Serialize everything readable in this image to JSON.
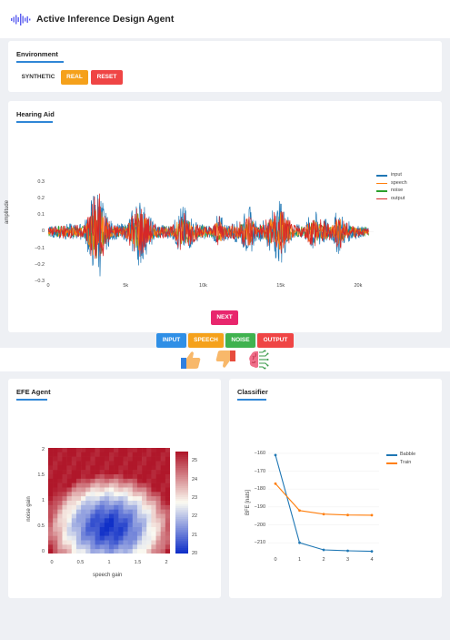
{
  "app": {
    "title": "Active Inference Design Agent"
  },
  "environment": {
    "title": "Environment",
    "buttons": [
      {
        "label": "SYNTHETIC",
        "color": "transparent"
      },
      {
        "label": "REAL",
        "color": "#f5a11b"
      },
      {
        "label": "RESET",
        "color": "#ef4545"
      }
    ]
  },
  "hearing_aid": {
    "title": "Hearing Aid",
    "next_label": "NEXT",
    "signal_buttons": [
      {
        "label": "INPUT",
        "color": "#2f8fe6"
      },
      {
        "label": "SPEECH",
        "color": "#f5a11b"
      },
      {
        "label": "NOISE",
        "color": "#3fb24f"
      },
      {
        "label": "OUTPUT",
        "color": "#ef4545"
      }
    ]
  },
  "feedback": {
    "thumbs_up_icon": "thumbs-up-icon",
    "thumbs_down_icon": "thumbs-down-icon",
    "brain_icon": "brain-icon"
  },
  "efe_agent": {
    "title": "EFE Agent"
  },
  "classifier": {
    "title": "Classifier"
  },
  "chart_data": [
    {
      "type": "line",
      "ylabel": "amplitude",
      "x_ticks": [
        "0",
        "5k",
        "10k",
        "15k",
        "20k"
      ],
      "y_ticks": [
        "0.3",
        "0.2",
        "0.1",
        "0",
        "−0.1",
        "−0.2",
        "−0.3"
      ],
      "xlim": [
        0,
        21000
      ],
      "ylim": [
        -0.3,
        0.36
      ],
      "series": [
        {
          "name": "input",
          "color": "#1f77b4"
        },
        {
          "name": "speech",
          "color": "#ff7f0e"
        },
        {
          "name": "noise",
          "color": "#2ca02c"
        },
        {
          "name": "output",
          "color": "#d62728"
        }
      ],
      "envelope": [
        [
          0,
          0.03
        ],
        [
          1000,
          0.05
        ],
        [
          2300,
          0.05
        ],
        [
          3000,
          0.28
        ],
        [
          3300,
          0.3
        ],
        [
          3700,
          0.12
        ],
        [
          4200,
          0.05
        ],
        [
          5000,
          0.05
        ],
        [
          5700,
          0.2
        ],
        [
          6000,
          0.22
        ],
        [
          6500,
          0.1
        ],
        [
          7000,
          0.05
        ],
        [
          8000,
          0.04
        ],
        [
          8600,
          0.17
        ],
        [
          9000,
          0.13
        ],
        [
          9700,
          0.05
        ],
        [
          10600,
          0.04
        ],
        [
          11000,
          0.12
        ],
        [
          11500,
          0.05
        ],
        [
          12300,
          0.07
        ],
        [
          13000,
          0.16
        ],
        [
          13500,
          0.04
        ],
        [
          14300,
          0.12
        ],
        [
          15000,
          0.2
        ],
        [
          15300,
          0.14
        ],
        [
          15800,
          0.05
        ],
        [
          16500,
          0.04
        ],
        [
          17100,
          0.14
        ],
        [
          17500,
          0.1
        ],
        [
          18300,
          0.06
        ],
        [
          18700,
          0.15
        ],
        [
          19200,
          0.07
        ],
        [
          20000,
          0.04
        ],
        [
          20700,
          0.02
        ]
      ]
    },
    {
      "type": "heatmap",
      "xlabel": "speech gain",
      "ylabel": "noise gain",
      "x_ticks": [
        "0",
        "0.5",
        "1",
        "1.5",
        "2"
      ],
      "y_ticks": [
        "2",
        "1.5",
        "1",
        "0.5",
        "0"
      ],
      "xlim": [
        0,
        2
      ],
      "ylim": [
        0,
        2
      ],
      "zlim": [
        20,
        25.5
      ],
      "colorbar_ticks": [
        "25",
        "24",
        "23",
        "22",
        "21",
        "20"
      ],
      "center": [
        1,
        0.5
      ],
      "colors": [
        "#1030c8",
        "#fbfbf2",
        "#b0172a"
      ]
    },
    {
      "type": "line",
      "ylabel": "BFE [nats]",
      "x": [
        0,
        1,
        2,
        3,
        4
      ],
      "x_ticks": [
        "0",
        "1",
        "2",
        "3",
        "4"
      ],
      "y_ticks": [
        "−160",
        "−170",
        "−180",
        "−190",
        "−200",
        "−210"
      ],
      "ylim": [
        -215,
        -157
      ],
      "series": [
        {
          "name": "Babble",
          "color": "#1f77b4",
          "values": [
            -161,
            -210,
            -214,
            -214.5,
            -214.8
          ]
        },
        {
          "name": "Train",
          "color": "#ff7f0e",
          "values": [
            -177,
            -192,
            -194,
            -194.5,
            -194.6
          ]
        }
      ]
    }
  ]
}
